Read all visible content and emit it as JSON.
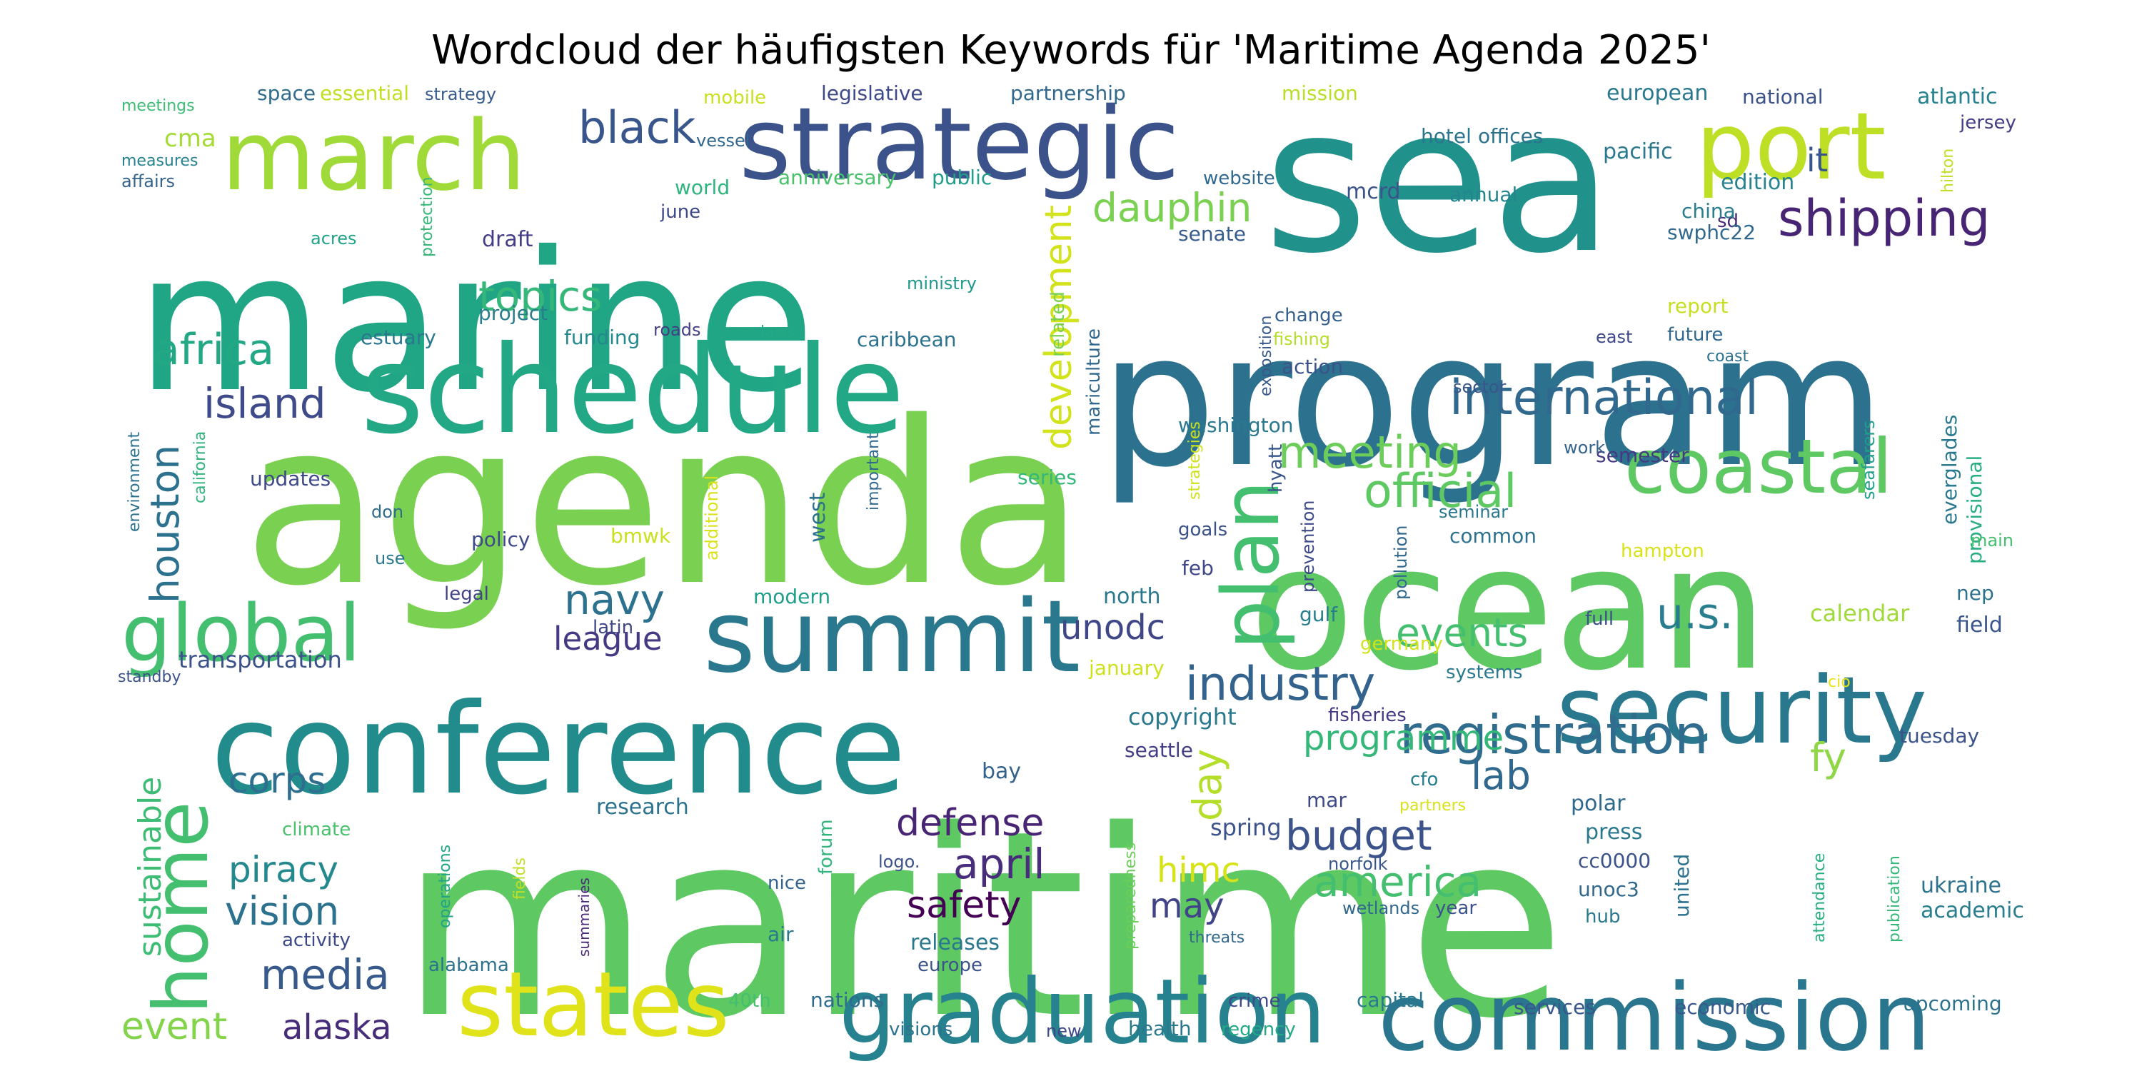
{
  "chart_data": {
    "type": "wordcloud",
    "title": "Wordcloud der häufigsten Keywords für 'Maritime Agenda 2025'",
    "palette": "viridis",
    "background": "#ffffff",
    "words": [
      {
        "text": "maritime",
        "color": "#5ec962"
      },
      {
        "text": "agenda",
        "color": "#7ad151"
      },
      {
        "text": "marine",
        "color": "#21a685"
      },
      {
        "text": "program",
        "color": "#2c728e"
      },
      {
        "text": "sea",
        "color": "#21918c"
      },
      {
        "text": "ocean",
        "color": "#5ec962"
      },
      {
        "text": "conference",
        "color": "#228c8d"
      },
      {
        "text": "schedule",
        "color": "#22a884"
      },
      {
        "text": "strategic",
        "color": "#3b528b"
      },
      {
        "text": "march",
        "color": "#a0da39"
      },
      {
        "text": "port",
        "color": "#bddf26"
      },
      {
        "text": "summit",
        "color": "#2a788e"
      },
      {
        "text": "security",
        "color": "#2a788e"
      },
      {
        "text": "commission",
        "color": "#2a768e"
      },
      {
        "text": "graduation",
        "color": "#26828e"
      },
      {
        "text": "states",
        "color": "#e0e31a"
      },
      {
        "text": "coastal",
        "color": "#5ec962"
      },
      {
        "text": "plan",
        "color": "#44bf70"
      },
      {
        "text": "global",
        "color": "#44bf70"
      },
      {
        "text": "home",
        "color": "#44bf70"
      },
      {
        "text": "registration",
        "color": "#2f6c8e"
      },
      {
        "text": "shipping",
        "color": "#482475"
      },
      {
        "text": "international",
        "color": "#31688e"
      },
      {
        "text": "industry",
        "color": "#33638d"
      },
      {
        "text": "official",
        "color": "#5ec962"
      },
      {
        "text": "meeting",
        "color": "#6ccd5a"
      },
      {
        "text": "development",
        "color": "#d2e21b"
      },
      {
        "text": "dauphin",
        "color": "#7ad151"
      },
      {
        "text": "black",
        "color": "#39568c"
      },
      {
        "text": "africa",
        "color": "#22a884"
      },
      {
        "text": "island",
        "color": "#3e4a89"
      },
      {
        "text": "houston",
        "color": "#2c728e"
      },
      {
        "text": "topics",
        "color": "#35b779"
      },
      {
        "text": "events",
        "color": "#44bf70"
      },
      {
        "text": "u.s.",
        "color": "#287d8e"
      },
      {
        "text": "navy",
        "color": "#2c728e"
      },
      {
        "text": "league",
        "color": "#443983"
      },
      {
        "text": "unodc",
        "color": "#3f4788"
      },
      {
        "text": "programme",
        "color": "#35b779"
      },
      {
        "text": "lab",
        "color": "#31688e"
      },
      {
        "text": "fy",
        "color": "#8fd744"
      },
      {
        "text": "day",
        "color": "#b5de2b"
      },
      {
        "text": "corps",
        "color": "#2e6e8e"
      },
      {
        "text": "defense",
        "color": "#482475"
      },
      {
        "text": "budget",
        "color": "#3b528b"
      },
      {
        "text": "america",
        "color": "#44bf70"
      },
      {
        "text": "april",
        "color": "#472d7b"
      },
      {
        "text": "piracy",
        "color": "#23898e"
      },
      {
        "text": "vision",
        "color": "#2c728e"
      },
      {
        "text": "himc",
        "color": "#d8e219"
      },
      {
        "text": "media",
        "color": "#38598c"
      },
      {
        "text": "safety",
        "color": "#440154"
      },
      {
        "text": "may",
        "color": "#414487"
      },
      {
        "text": "sustainable",
        "color": "#3dbc74"
      },
      {
        "text": "event",
        "color": "#84d44b"
      },
      {
        "text": "alaska",
        "color": "#472c7a"
      },
      {
        "text": "transportation",
        "color": "#3b528b"
      },
      {
        "text": "it",
        "color": "#39568c"
      },
      {
        "text": "cma",
        "color": "#a5db36"
      },
      {
        "text": "strategy",
        "color": "#375b8d"
      },
      {
        "text": "space",
        "color": "#2f6c8e"
      },
      {
        "text": "essential",
        "color": "#c0df25"
      },
      {
        "text": "meetings",
        "color": "#3dbc74"
      },
      {
        "text": "mobile",
        "color": "#c8e020"
      },
      {
        "text": "legislative",
        "color": "#3e4989"
      },
      {
        "text": "partnership",
        "color": "#31688e"
      },
      {
        "text": "mission",
        "color": "#b8de29"
      },
      {
        "text": "hotel",
        "color": "#2a768e"
      },
      {
        "text": "offices",
        "color": "#2c728e"
      },
      {
        "text": "european",
        "color": "#2a788e"
      },
      {
        "text": "national",
        "color": "#3b528b"
      },
      {
        "text": "atlantic",
        "color": "#26828e"
      },
      {
        "text": "jersey",
        "color": "#433e85"
      },
      {
        "text": "vessel",
        "color": "#31688e"
      },
      {
        "text": "measures",
        "color": "#26828e"
      },
      {
        "text": "affairs",
        "color": "#33638d"
      },
      {
        "text": "world",
        "color": "#2fb47c"
      },
      {
        "text": "anniversary",
        "color": "#4ac16d"
      },
      {
        "text": "public",
        "color": "#1f9e89"
      },
      {
        "text": "website",
        "color": "#31688e"
      },
      {
        "text": "mcrd",
        "color": "#3b528b"
      },
      {
        "text": "pacific",
        "color": "#2a788e"
      },
      {
        "text": "annual",
        "color": "#25858e"
      },
      {
        "text": "edition",
        "color": "#26828e"
      },
      {
        "text": "sd",
        "color": "#482878"
      },
      {
        "text": "hilton",
        "color": "#c2df23"
      },
      {
        "text": "china",
        "color": "#287d8e"
      },
      {
        "text": "swphc22",
        "color": "#31688e"
      },
      {
        "text": "senate",
        "color": "#365c8d"
      },
      {
        "text": "june",
        "color": "#3e4989"
      },
      {
        "text": "draft",
        "color": "#433e85"
      },
      {
        "text": "acres",
        "color": "#20a386"
      },
      {
        "text": "protection",
        "color": "#37b878"
      },
      {
        "text": "ministry",
        "color": "#1f9a8a"
      },
      {
        "text": "related",
        "color": "#7ad151"
      },
      {
        "text": "mariculture",
        "color": "#31688e"
      },
      {
        "text": "exposition",
        "color": "#38598c"
      },
      {
        "text": "change",
        "color": "#355f8d"
      },
      {
        "text": "fishing",
        "color": "#b5de2b"
      },
      {
        "text": "report",
        "color": "#c5e021"
      },
      {
        "text": "east",
        "color": "#3e4989"
      },
      {
        "text": "future",
        "color": "#31688e"
      },
      {
        "text": "coast",
        "color": "#2c728e"
      },
      {
        "text": "project",
        "color": "#287d8e"
      },
      {
        "text": "roads",
        "color": "#433e85"
      },
      {
        "text": "laws",
        "color": "#22a884"
      },
      {
        "text": "caribbean",
        "color": "#2c728e"
      },
      {
        "text": "estuary",
        "color": "#2a788e"
      },
      {
        "text": "funding",
        "color": "#23898e"
      },
      {
        "text": "washington",
        "color": "#2a788e"
      },
      {
        "text": "action",
        "color": "#3b528b"
      },
      {
        "text": "sector",
        "color": "#39568c"
      },
      {
        "text": "semester",
        "color": "#443983"
      },
      {
        "text": "seafarers",
        "color": "#1f9e89"
      },
      {
        "text": "everglades",
        "color": "#2a788e"
      },
      {
        "text": "provisional",
        "color": "#29af7f"
      },
      {
        "text": "environment",
        "color": "#2c728e"
      },
      {
        "text": "california",
        "color": "#2fb47c"
      },
      {
        "text": "updates",
        "color": "#3e4989"
      },
      {
        "text": "don",
        "color": "#2f6c8e"
      },
      {
        "text": "use",
        "color": "#2a788e"
      },
      {
        "text": "legal",
        "color": "#414487"
      },
      {
        "text": "additional",
        "color": "#dae319"
      },
      {
        "text": "important",
        "color": "#31688e"
      },
      {
        "text": "policy",
        "color": "#3e4989"
      },
      {
        "text": "bmwk",
        "color": "#c8e020"
      },
      {
        "text": "west",
        "color": "#2c728e"
      },
      {
        "text": "series",
        "color": "#35b779"
      },
      {
        "text": "strategies",
        "color": "#cde11d"
      },
      {
        "text": "hyatt",
        "color": "#39568c"
      },
      {
        "text": "goals",
        "color": "#3b528b"
      },
      {
        "text": "feb",
        "color": "#3f4788"
      },
      {
        "text": "prevention",
        "color": "#3e4989"
      },
      {
        "text": "pollution",
        "color": "#31688e"
      },
      {
        "text": "seminar",
        "color": "#2a788e"
      },
      {
        "text": "common",
        "color": "#2c728e"
      },
      {
        "text": "hampton",
        "color": "#d8e219"
      },
      {
        "text": "work",
        "color": "#33638d"
      },
      {
        "text": "main",
        "color": "#44bf70"
      },
      {
        "text": "nep",
        "color": "#2c728e"
      },
      {
        "text": "field",
        "color": "#39568c"
      },
      {
        "text": "modern",
        "color": "#1f9e89"
      },
      {
        "text": "north",
        "color": "#2a788e"
      },
      {
        "text": "gulf",
        "color": "#287d8e"
      },
      {
        "text": "latin",
        "color": "#3f4788"
      },
      {
        "text": "germany",
        "color": "#d2e21b"
      },
      {
        "text": "full",
        "color": "#3b528b"
      },
      {
        "text": "calendar",
        "color": "#9fda3a"
      },
      {
        "text": "january",
        "color": "#cde11d"
      },
      {
        "text": "systems",
        "color": "#2a788e"
      },
      {
        "text": "standby",
        "color": "#3b528b"
      },
      {
        "text": "copyright",
        "color": "#2a788e"
      },
      {
        "text": "fisheries",
        "color": "#443983"
      },
      {
        "text": "cio",
        "color": "#e7e419"
      },
      {
        "text": "tuesday",
        "color": "#3b528b"
      },
      {
        "text": "seattle",
        "color": "#433e85"
      },
      {
        "text": "bay",
        "color": "#33638d"
      },
      {
        "text": "spring",
        "color": "#3b528b"
      },
      {
        "text": "cfo",
        "color": "#287d8e"
      },
      {
        "text": "partners",
        "color": "#d8e219"
      },
      {
        "text": "mar",
        "color": "#3e4989"
      },
      {
        "text": "polar",
        "color": "#31688e"
      },
      {
        "text": "press",
        "color": "#2a788e"
      },
      {
        "text": "climate",
        "color": "#4ac16d"
      },
      {
        "text": "operations",
        "color": "#20a386"
      },
      {
        "text": "fields",
        "color": "#c2df23"
      },
      {
        "text": "research",
        "color": "#2c728e"
      },
      {
        "text": "forum",
        "color": "#2fb47c"
      },
      {
        "text": "logo.",
        "color": "#3b528b"
      },
      {
        "text": "nice",
        "color": "#33638d"
      },
      {
        "text": "summaries",
        "color": "#482878"
      },
      {
        "text": "preparedness",
        "color": "#6ccd5a"
      },
      {
        "text": "norfolk",
        "color": "#39568c"
      },
      {
        "text": "wetlands",
        "color": "#31688e"
      },
      {
        "text": "year",
        "color": "#3b528b"
      },
      {
        "text": "cc0000",
        "color": "#3b528b"
      },
      {
        "text": "unoc3",
        "color": "#31688e"
      },
      {
        "text": "hub",
        "color": "#2a788e"
      },
      {
        "text": "united",
        "color": "#2c728e"
      },
      {
        "text": "attendance",
        "color": "#29af7f"
      },
      {
        "text": "publication",
        "color": "#35b779"
      },
      {
        "text": "ukraine",
        "color": "#2c728e"
      },
      {
        "text": "academic",
        "color": "#287d8e"
      },
      {
        "text": "activity",
        "color": "#3e4989"
      },
      {
        "text": "air",
        "color": "#2a788e"
      },
      {
        "text": "alabama",
        "color": "#2c728e"
      },
      {
        "text": "releases",
        "color": "#2a788e"
      },
      {
        "text": "europe",
        "color": "#3b528b"
      },
      {
        "text": "40th",
        "color": "#44bf70"
      },
      {
        "text": "nations",
        "color": "#2f6c8e"
      },
      {
        "text": "threats",
        "color": "#31688e"
      },
      {
        "text": "crime",
        "color": "#3e4989"
      },
      {
        "text": "capital",
        "color": "#2a788e"
      },
      {
        "text": "services",
        "color": "#39568c"
      },
      {
        "text": "economic",
        "color": "#38598c"
      },
      {
        "text": "upcoming",
        "color": "#2c728e"
      },
      {
        "text": "visions",
        "color": "#2c728e"
      },
      {
        "text": "new",
        "color": "#3e4989"
      },
      {
        "text": "health",
        "color": "#2a788e"
      },
      {
        "text": "regency",
        "color": "#22a884"
      }
    ]
  }
}
